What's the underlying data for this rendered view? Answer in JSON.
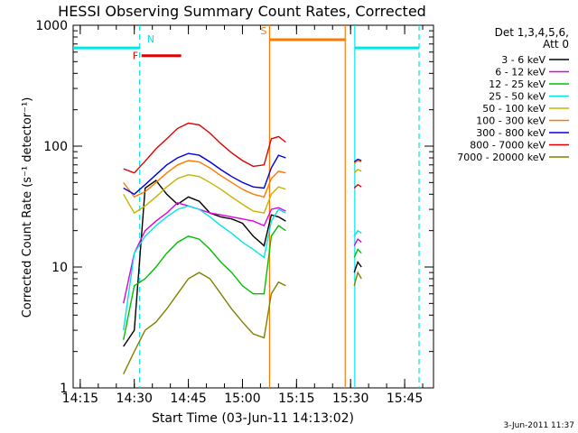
{
  "chart_data": {
    "type": "line",
    "title": "HESSI Observing Summary Count Rates, Corrected",
    "xlabel": "Start Time (03-Jun-11 14:13:02)",
    "ylabel": "Corrected Count Rate (s⁻¹ detector⁻¹)",
    "x_scale": "time",
    "y_scale": "log",
    "xlim": [
      "14:13:02",
      "15:53:00"
    ],
    "ylim": [
      1,
      1000
    ],
    "x_ticks": [
      "14:15",
      "14:30",
      "14:45",
      "15:00",
      "15:15",
      "15:30",
      "15:45"
    ],
    "y_ticks": [
      "1",
      "10",
      "100",
      "1000"
    ],
    "legend_header": [
      "Det 1,3,4,5,6,",
      "Att 0"
    ],
    "legend_position": "right",
    "timestamp": "3-Jun-2011 11:37",
    "x_times": [
      "14:27",
      "14:30",
      "14:33",
      "14:36",
      "14:39",
      "14:42",
      "14:45",
      "14:48",
      "14:51",
      "14:54",
      "14:57",
      "15:00",
      "15:03",
      "15:06",
      "15:08",
      "15:10",
      "15:12",
      "15:30",
      "15:31",
      "15:32",
      "15:33"
    ],
    "series": [
      {
        "name": "3 - 6 keV",
        "color": "#000000",
        "values": [
          2.2,
          3,
          45,
          52,
          40,
          33,
          38,
          35,
          28,
          26,
          25,
          23,
          18,
          15,
          27,
          26,
          24,
          null,
          9,
          11,
          10
        ]
      },
      {
        "name": "6 - 12 keV",
        "color": "#e000e0",
        "values": [
          5,
          13,
          20,
          24,
          28,
          34,
          32,
          30,
          28,
          27,
          26,
          25,
          24,
          22,
          30,
          31,
          29,
          null,
          15,
          17,
          16
        ]
      },
      {
        "name": "12 - 25 keV",
        "color": "#00c000",
        "values": [
          2.5,
          7,
          8,
          10,
          13,
          16,
          18,
          17,
          14,
          11,
          9,
          7,
          6,
          6,
          18,
          22,
          20,
          null,
          12,
          14,
          13
        ]
      },
      {
        "name": "25 - 50 keV",
        "color": "#00e5e5",
        "values": [
          3,
          13,
          18,
          22,
          26,
          30,
          32,
          30,
          26,
          22,
          19,
          16,
          14,
          12,
          24,
          30,
          28,
          null,
          18,
          20,
          19
        ]
      },
      {
        "name": "50 - 100 keV",
        "color": "#c8b400",
        "values": [
          40,
          28,
          32,
          38,
          46,
          54,
          58,
          56,
          50,
          44,
          38,
          33,
          29,
          28,
          40,
          46,
          44,
          null,
          60,
          64,
          62
        ]
      },
      {
        "name": "100 - 300 keV",
        "color": "#ff7800",
        "values": [
          50,
          38,
          42,
          50,
          60,
          70,
          76,
          74,
          66,
          57,
          50,
          44,
          40,
          38,
          54,
          62,
          60,
          null,
          72,
          76,
          74
        ]
      },
      {
        "name": "300 - 800 keV",
        "color": "#0000e0",
        "values": [
          45,
          40,
          48,
          58,
          70,
          80,
          87,
          84,
          74,
          64,
          56,
          50,
          46,
          45,
          66,
          84,
          80,
          null,
          74,
          78,
          76
        ]
      },
      {
        "name": "800 - 7000 keV",
        "color": "#e00000",
        "values": [
          65,
          60,
          75,
          95,
          115,
          140,
          155,
          150,
          128,
          105,
          88,
          76,
          68,
          70,
          115,
          120,
          108,
          null,
          45,
          48,
          46
        ]
      },
      {
        "name": "7000 - 20000 keV",
        "color": "#808000",
        "values": [
          1.3,
          2,
          3,
          3.5,
          4.5,
          6,
          8,
          9,
          8,
          6,
          4.5,
          3.5,
          2.8,
          2.6,
          6,
          7.5,
          7,
          null,
          7,
          9,
          8
        ]
      }
    ],
    "annotations": [
      {
        "label": "N",
        "color": "#00e5e5",
        "segments": [
          [
            "14:13:02",
            "14:31:30"
          ],
          [
            "15:31:10",
            "15:49:00"
          ]
        ],
        "level": 650,
        "bounds": [
          "14:31:30",
          "15:31:10",
          "15:49:00"
        ]
      },
      {
        "label": "F",
        "color": "#e00000",
        "segments": [
          [
            "14:32:00",
            "14:43:00"
          ]
        ],
        "level": 560
      },
      {
        "label": "S",
        "color": "#ff7800",
        "segments": [
          [
            "15:07:30",
            "15:28:30"
          ]
        ],
        "level": 760,
        "bounds": [
          "15:07:30",
          "15:28:30"
        ]
      }
    ]
  }
}
